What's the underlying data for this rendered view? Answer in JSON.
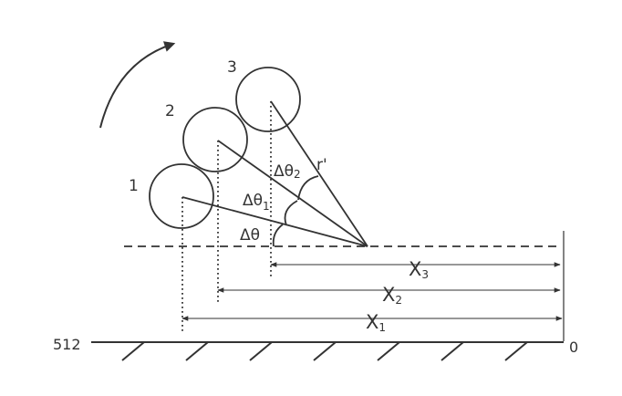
{
  "diagram": {
    "ball_labels": {
      "b1": "1",
      "b2": "2",
      "b3": "3"
    },
    "angle_labels": {
      "d0": "Δθ",
      "d1": "Δθ",
      "d1_sub": "1",
      "d2": "Δθ",
      "d2_sub": "2"
    },
    "radius_label": "r'",
    "distance_labels": {
      "x1": "X",
      "x1_sub": "1",
      "x2": "X",
      "x2_sub": "2",
      "x3": "X",
      "x3_sub": "3"
    },
    "scale_labels": {
      "left": "512",
      "right": "0"
    },
    "colors": {
      "line": "#333333",
      "arrow_line": "#777777"
    }
  }
}
